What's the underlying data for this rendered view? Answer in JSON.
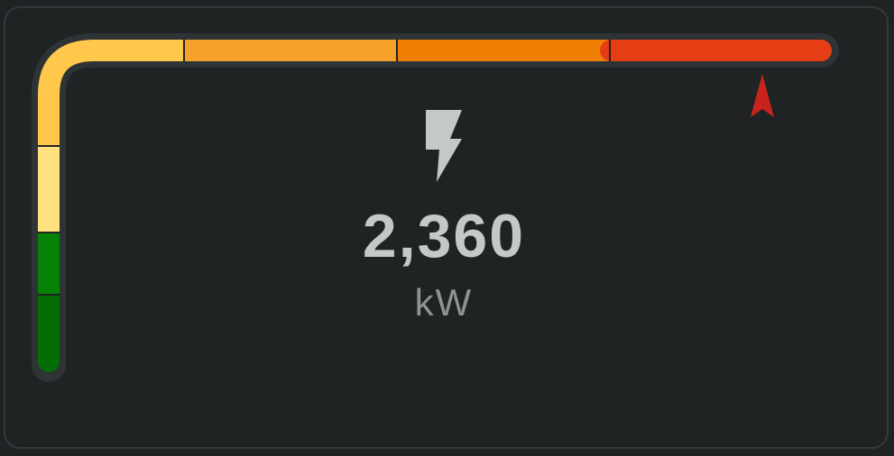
{
  "gauge": {
    "value": 2360,
    "value_display": "2,360",
    "unit": "kW",
    "icon": "lightning-bolt-icon",
    "pointer_position_fraction": 0.85,
    "colors": {
      "background": "#202324",
      "card_border": "#34393b",
      "track": "#2e3335",
      "text": "#c5c8c8",
      "unit_text": "#8f9394",
      "pointer": "#c8241d",
      "segments": [
        "#046d05",
        "#068306",
        "#ffe180",
        "#ffc84b",
        "#f6a22a",
        "#ef8003",
        "#e63e14"
      ]
    }
  }
}
